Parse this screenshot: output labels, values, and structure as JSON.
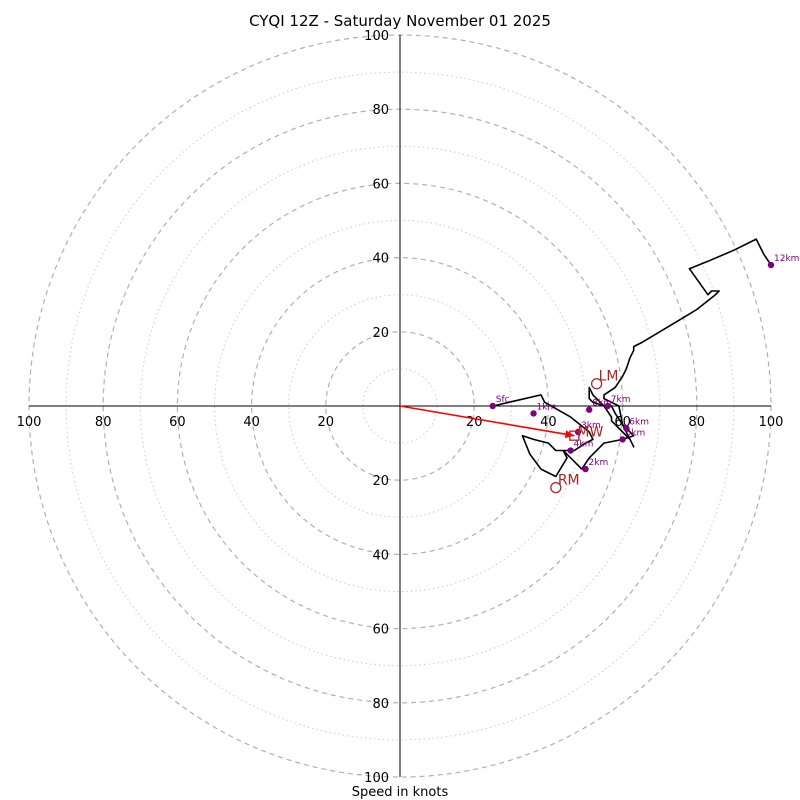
{
  "chart_data": {
    "type": "hodograph",
    "title": "CYQI 12Z - Saturday November 01 2025",
    "xlabel": "Speed in knots",
    "range": [
      -100,
      100
    ],
    "ring_labels": [
      "20",
      "40",
      "60",
      "80",
      "100"
    ],
    "tick_values": [
      20,
      40,
      60,
      80,
      100
    ],
    "major_rings": [
      20,
      40,
      60,
      80,
      100
    ],
    "minor_rings": [
      10,
      30,
      50,
      70,
      90
    ],
    "trace": [
      [
        25,
        0
      ],
      [
        38,
        3
      ],
      [
        39,
        1
      ],
      [
        46,
        -3
      ],
      [
        51,
        -7
      ],
      [
        52,
        -9
      ],
      [
        50,
        -10
      ],
      [
        47,
        -12
      ],
      [
        42,
        -12
      ],
      [
        40,
        -10
      ],
      [
        36,
        -9
      ],
      [
        33,
        -8
      ],
      [
        35,
        -13
      ],
      [
        38,
        -17
      ],
      [
        42,
        -19
      ],
      [
        45,
        -14
      ],
      [
        44,
        -12
      ],
      [
        46,
        -14
      ],
      [
        49,
        -17
      ],
      [
        51,
        -14
      ],
      [
        52,
        -13
      ],
      [
        55,
        -10
      ],
      [
        60,
        -9
      ],
      [
        63,
        -8
      ],
      [
        62,
        -7
      ],
      [
        61,
        -6
      ],
      [
        60,
        -5
      ],
      [
        58,
        -2
      ],
      [
        57,
        0
      ],
      [
        55,
        0
      ],
      [
        52,
        1
      ],
      [
        51,
        2
      ],
      [
        51,
        5
      ],
      [
        52,
        3
      ],
      [
        55,
        0
      ],
      [
        57,
        -3
      ],
      [
        57,
        -4
      ],
      [
        60,
        -7
      ],
      [
        62,
        -9
      ],
      [
        63,
        -11
      ],
      [
        60,
        -5
      ],
      [
        59,
        0
      ],
      [
        57,
        1
      ],
      [
        55,
        2
      ],
      [
        55,
        3
      ],
      [
        58,
        5
      ],
      [
        60,
        8
      ],
      [
        61,
        10
      ],
      [
        62,
        13
      ],
      [
        63,
        15
      ],
      [
        63,
        16
      ],
      [
        65,
        17
      ],
      [
        70,
        20
      ],
      [
        75,
        23
      ],
      [
        80,
        26
      ],
      [
        85,
        30
      ],
      [
        86,
        31
      ],
      [
        84,
        31
      ],
      [
        83,
        30
      ],
      [
        78,
        37
      ],
      [
        83,
        39
      ],
      [
        90,
        42
      ],
      [
        96,
        45
      ],
      [
        98,
        41
      ],
      [
        100,
        38
      ]
    ],
    "levels": [
      {
        "label": "Sfc",
        "u": 25,
        "v": 0
      },
      {
        "label": "1km",
        "u": 36,
        "v": -2
      },
      {
        "label": "2km",
        "u": 50,
        "v": -17
      },
      {
        "label": "3km",
        "u": 48,
        "v": -7
      },
      {
        "label": "4km",
        "u": 46,
        "v": -12
      },
      {
        "label": "5km",
        "u": 60,
        "v": -9
      },
      {
        "label": "6km",
        "u": 61,
        "v": -6
      },
      {
        "label": "7km",
        "u": 56,
        "v": 0
      },
      {
        "label": "8km",
        "u": 51,
        "v": -1
      },
      {
        "label": "12km",
        "u": 100,
        "v": 38
      }
    ],
    "markers": [
      {
        "label": "LM",
        "u": 53,
        "v": 6
      },
      {
        "label": "RM",
        "u": 42,
        "v": -22
      },
      {
        "label": "MW",
        "u": 47,
        "v": -8
      }
    ],
    "shear_vector": {
      "from": [
        0,
        0
      ],
      "to": [
        47,
        -8
      ]
    },
    "colors": {
      "trace": "#000000",
      "levels": "#800080",
      "markers": "#b22222",
      "shear": "#ff0000",
      "rings": "#b0b0b0"
    }
  }
}
